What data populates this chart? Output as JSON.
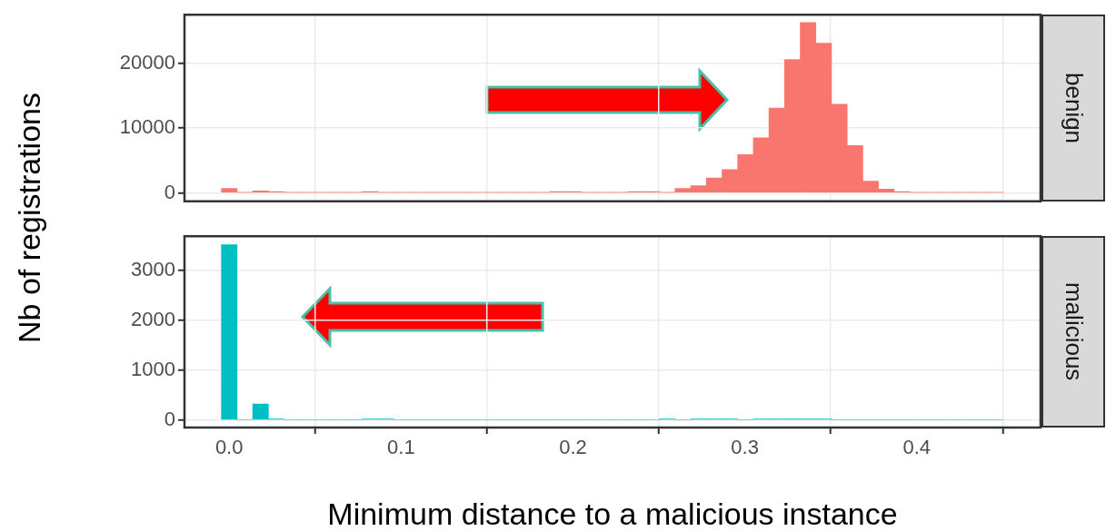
{
  "chart_data": [
    {
      "type": "histogram",
      "annotations": [
        "benign"
      ],
      "ylabel": "Nb of registrations",
      "color": "#f8766d",
      "bins": [
        -0.0045,
        0.0046,
        0.0137,
        0.0228,
        0.0319,
        0.041,
        0.0501,
        0.0592,
        0.0683,
        0.0774,
        0.0865,
        0.0956,
        0.1047,
        0.1138,
        0.1229,
        0.132,
        0.1411,
        0.1502,
        0.1593,
        0.1684,
        0.1775,
        0.1866,
        0.1957,
        0.2048,
        0.2139,
        0.223,
        0.2321,
        0.2412,
        0.2503,
        0.2594,
        0.2685,
        0.2776,
        0.2867,
        0.2958,
        0.3049,
        0.314,
        0.3231,
        0.3322,
        0.3413,
        0.3504,
        0.3595,
        0.3686,
        0.3777,
        0.3868,
        0.3959,
        0.405,
        0.4141,
        0.4232,
        0.4323,
        0.4414,
        0.4505
      ],
      "values": [
        700,
        100,
        300,
        200,
        100,
        100,
        100,
        100,
        100,
        200,
        100,
        100,
        100,
        100,
        100,
        100,
        100,
        100,
        100,
        100,
        100,
        200,
        200,
        100,
        100,
        100,
        200,
        200,
        100,
        700,
        1100,
        2300,
        3600,
        5900,
        8500,
        13100,
        20600,
        26300,
        23100,
        13700,
        7300,
        1800,
        600,
        200,
        100,
        100,
        100,
        100,
        100,
        100
      ],
      "xlim": [
        -0.026,
        0.472
      ],
      "xticks": [
        0,
        0.1,
        0.2,
        0.3,
        0.4
      ],
      "ylim": [
        -1300,
        27500
      ],
      "yticks": [
        0,
        10000,
        20000
      ],
      "grid": true,
      "tick_labels": "y"
    },
    {
      "type": "histogram",
      "annotations": [
        "malicious"
      ],
      "xlabel": "Minimum distance to a malicious instance",
      "color": "#00bfc4",
      "bins": [
        -0.0045,
        0.0046,
        0.0137,
        0.0228,
        0.0319,
        0.041,
        0.0501,
        0.0592,
        0.0683,
        0.0774,
        0.0865,
        0.0956,
        0.1047,
        0.1138,
        0.1229,
        0.132,
        0.1411,
        0.1502,
        0.1593,
        0.1684,
        0.1775,
        0.1866,
        0.1957,
        0.2048,
        0.2139,
        0.223,
        0.2321,
        0.2412,
        0.2503,
        0.2594,
        0.2685,
        0.2776,
        0.2867,
        0.2958,
        0.3049,
        0.314,
        0.3231,
        0.3322,
        0.3413,
        0.3504,
        0.3595,
        0.3686,
        0.3777,
        0.3868,
        0.3959,
        0.405,
        0.4141,
        0.4232,
        0.4323,
        0.4414,
        0.4505
      ],
      "values": [
        3520,
        0,
        320,
        20,
        0,
        0,
        0,
        0,
        0,
        20,
        20,
        0,
        0,
        0,
        0,
        0,
        0,
        0,
        0,
        0,
        0,
        0,
        0,
        0,
        0,
        0,
        0,
        0,
        20,
        0,
        20,
        20,
        20,
        0,
        20,
        20,
        20,
        20,
        20,
        0,
        0,
        0,
        0,
        0,
        0,
        0,
        0,
        0,
        0,
        0
      ],
      "xlim": [
        -0.026,
        0.472
      ],
      "xticks": [
        {
          "value": 0,
          "label": "0.0"
        },
        0.1,
        0.2,
        0.3,
        0.4
      ],
      "ylim": [
        -150,
        3690
      ],
      "yticks": [
        0,
        1000,
        2000,
        3000
      ],
      "grid": true
    }
  ]
}
